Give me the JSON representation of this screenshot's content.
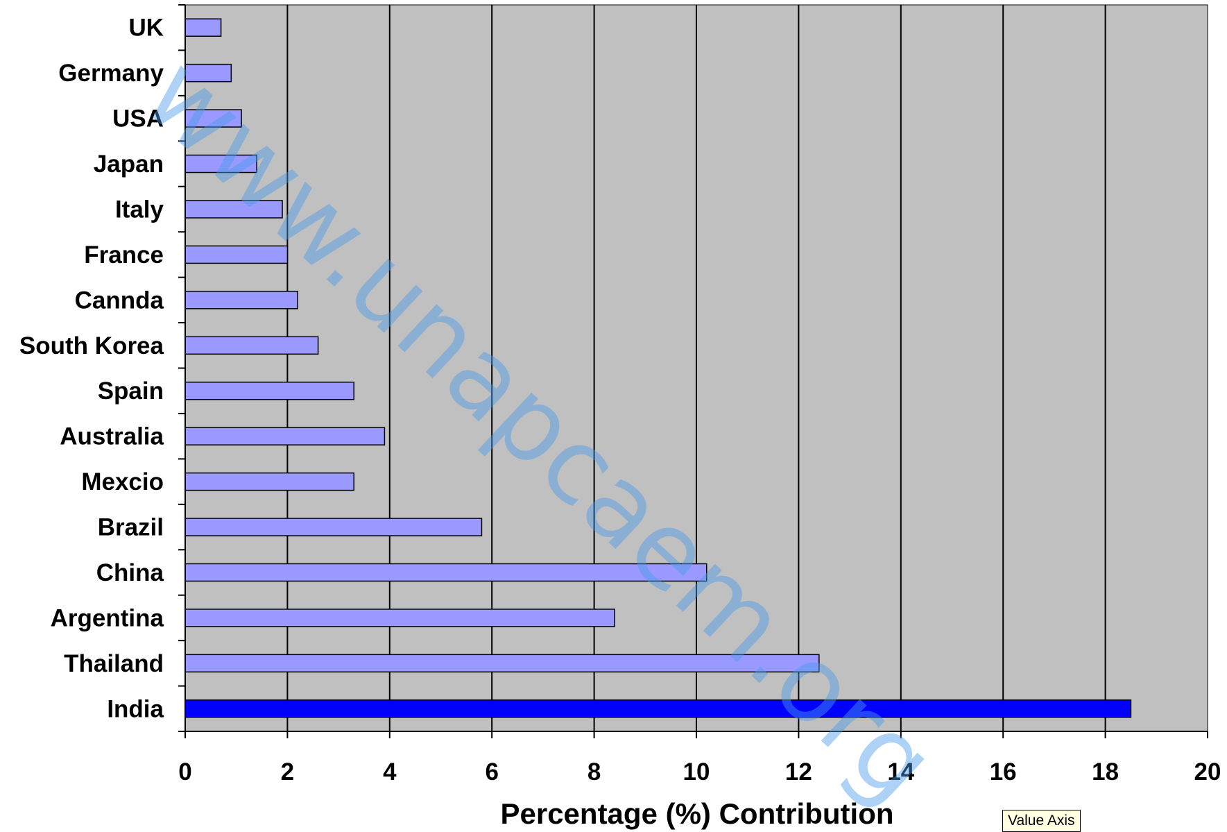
{
  "chart_data": {
    "type": "bar",
    "orientation": "horizontal",
    "categories": [
      "UK",
      "Germany",
      "USA",
      "Japan",
      "Italy",
      "France",
      "Cannda",
      "South Korea",
      "Spain",
      "Australia",
      "Mexcio",
      "Brazil",
      "China",
      "Argentina",
      "Thailand",
      "India"
    ],
    "values": [
      0.7,
      0.9,
      1.1,
      1.4,
      1.9,
      2.0,
      2.2,
      2.6,
      3.3,
      3.9,
      3.3,
      5.8,
      10.2,
      8.4,
      12.4,
      18.5
    ],
    "xlabel": "Percentage (%) Contribution",
    "xlim": [
      0,
      20
    ],
    "xticks": [
      0,
      2,
      4,
      6,
      8,
      10,
      12,
      14,
      16,
      18,
      20
    ],
    "grid": "vertical",
    "plot_background": "#c0c0c0",
    "bar_color": "#9999ff",
    "highlight_bar_color": "#0000ff",
    "highlight_category": "India"
  },
  "watermark": "www.unapcaem.org",
  "tooltip": "Value Axis"
}
